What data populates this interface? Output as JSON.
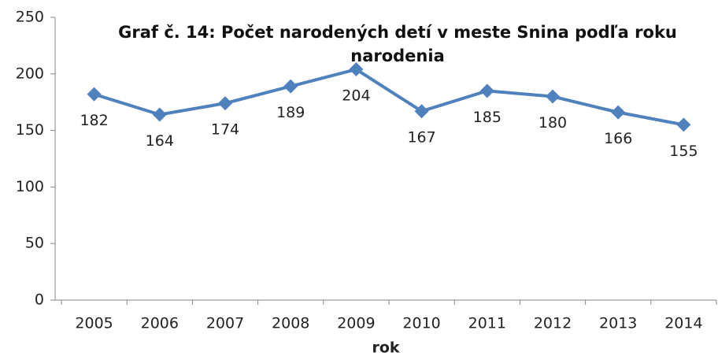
{
  "chart_data": {
    "type": "line",
    "title": "Graf č. 14: Počet narodených detí v meste Snina podľa roku narodenia",
    "x_label": "rok",
    "categories": [
      "2005",
      "2006",
      "2007",
      "2008",
      "2009",
      "2010",
      "2011",
      "2012",
      "2013",
      "2014"
    ],
    "series": [
      {
        "name": "Počet narodených detí",
        "color": "#4f81bd",
        "values": [
          182,
          164,
          174,
          189,
          204,
          167,
          185,
          180,
          166,
          155
        ]
      }
    ],
    "ylim": [
      0,
      250
    ],
    "yticks": [
      0,
      50,
      100,
      150,
      200,
      250
    ],
    "grid": false,
    "data_labels": true
  }
}
